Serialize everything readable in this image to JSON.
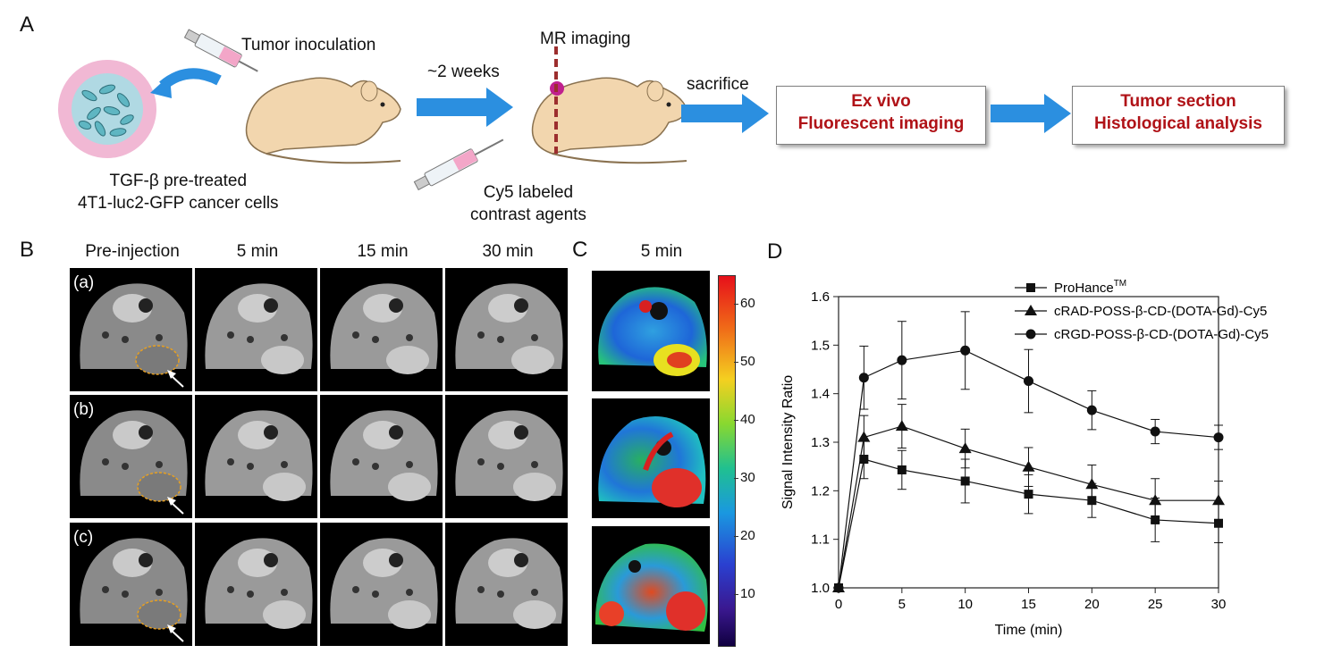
{
  "panel_a": {
    "label": "A",
    "tumor_inoculation": "Tumor inoculation",
    "weeks": "~2 weeks",
    "mr_imaging": "MR imaging",
    "sacrifice": "sacrifice",
    "cells_line1": "TGF-β pre-treated",
    "cells_line2": "4T1-luc2-GFP cancer cells",
    "agent_line1": "Cy5 labeled",
    "agent_line2": "contrast agents",
    "box1_line1": "Ex vivo",
    "box1_line2": "Fluorescent imaging",
    "box2_line1": "Tumor section",
    "box2_line2": "Histological analysis",
    "colors": {
      "arrow": "#2b8fe0",
      "box_text": "#b01217",
      "mouse": "#f2d6ae"
    }
  },
  "panel_b": {
    "label": "B",
    "columns": [
      "Pre-injection",
      "5 min",
      "15 min",
      "30 min"
    ],
    "rows": [
      "(a)",
      "(b)",
      "(c)"
    ]
  },
  "panel_c": {
    "label": "C",
    "title": "5 min",
    "colorbar_ticks": [
      "60",
      "50",
      "40",
      "30",
      "20",
      "10"
    ]
  },
  "panel_d": {
    "label": "D"
  },
  "chart_data": {
    "type": "line",
    "title": "",
    "xlabel": "Time (min)",
    "ylabel": "Signal Intensity Ratio",
    "xlim": [
      0,
      30
    ],
    "ylim": [
      1.0,
      1.6
    ],
    "xticks": [
      0,
      5,
      10,
      15,
      20,
      25,
      30
    ],
    "yticks": [
      1.0,
      1.1,
      1.2,
      1.3,
      1.4,
      1.5,
      1.6
    ],
    "x": [
      0,
      2,
      5,
      10,
      15,
      20,
      25,
      30
    ],
    "series": [
      {
        "name": "ProHance",
        "name_sup": "TM",
        "marker": "square",
        "values": [
          1.0,
          1.265,
          1.243,
          1.22,
          1.193,
          1.18,
          1.14,
          1.133
        ],
        "errors": [
          0,
          0.04,
          0.04,
          0.045,
          0.04,
          0.035,
          0.045,
          0.04
        ]
      },
      {
        "name": "cRAD-POSS-β-CD-(DOTA-Gd)-Cy5",
        "marker": "triangle",
        "values": [
          1.0,
          1.31,
          1.333,
          1.287,
          1.249,
          1.213,
          1.18,
          1.18
        ],
        "errors": [
          0,
          0.045,
          0.045,
          0.04,
          0.04,
          0.04,
          0.045,
          0.04
        ]
      },
      {
        "name": "cRGD-POSS-β-CD-(DOTA-Gd)-Cy5",
        "marker": "circle",
        "values": [
          1.0,
          1.433,
          1.469,
          1.489,
          1.426,
          1.366,
          1.322,
          1.31
        ],
        "errors": [
          0,
          0.065,
          0.08,
          0.08,
          0.065,
          0.04,
          0.025,
          0.025
        ]
      }
    ],
    "legend_position": "top-right"
  }
}
